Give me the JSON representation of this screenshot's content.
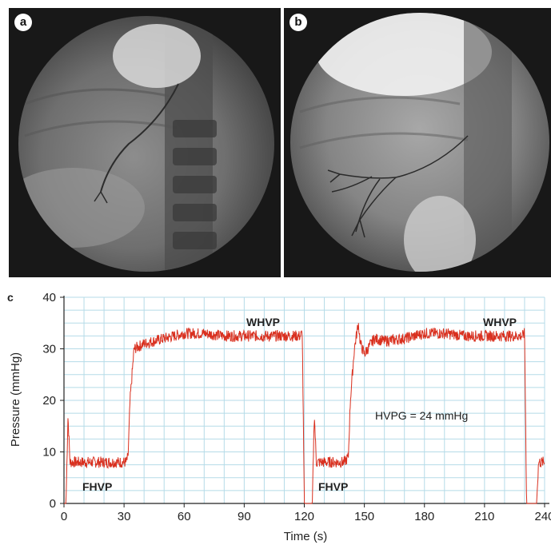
{
  "panels": {
    "a": {
      "label": "a"
    },
    "b": {
      "label": "b"
    },
    "c": {
      "label": "c"
    }
  },
  "colors": {
    "trace": "#d9301f",
    "grid": "#b5dbe8",
    "axis": "#222222",
    "xray_bg": "#181818"
  },
  "chart_data": {
    "type": "line",
    "title": "",
    "xlabel": "Time (s)",
    "ylabel": "Pressure (mmHg)",
    "xlim": [
      0,
      240
    ],
    "ylim": [
      0,
      40
    ],
    "x_ticks": [
      "0",
      "30",
      "60",
      "90",
      "120",
      "150",
      "180",
      "210",
      "240"
    ],
    "y_ticks": [
      "0",
      "10",
      "20",
      "30",
      "40"
    ],
    "grid": true,
    "series": [
      {
        "x": [
          0,
          1,
          2,
          3,
          10,
          20,
          30,
          31,
          32,
          33,
          35,
          40,
          50,
          60,
          70,
          80,
          90,
          100,
          110,
          118,
          119,
          120,
          121,
          124,
          125,
          126,
          127,
          135,
          140,
          142,
          143,
          145,
          147,
          148,
          150,
          155,
          160,
          170,
          180,
          190,
          200,
          210,
          220,
          229,
          230,
          231,
          234,
          236,
          237,
          240
        ],
        "y": [
          0,
          0,
          17,
          8,
          8,
          8,
          8,
          8,
          9,
          20,
          30,
          31,
          32,
          33,
          33,
          32.5,
          32.5,
          32.5,
          32.5,
          32.5,
          33,
          0,
          0,
          0,
          17.5,
          8,
          8,
          8,
          8,
          9,
          20,
          30,
          35,
          31,
          29,
          32,
          31.5,
          32,
          33,
          33,
          32.5,
          32.5,
          32.5,
          32.5,
          33,
          0,
          0,
          0,
          8,
          8
        ]
      }
    ],
    "annotations": [
      {
        "text": "WHVP"
      },
      {
        "text": "WHVP"
      },
      {
        "text": "FHVP"
      },
      {
        "text": "FHVP"
      },
      {
        "text": "HVPG = 24 mmHg"
      }
    ]
  }
}
